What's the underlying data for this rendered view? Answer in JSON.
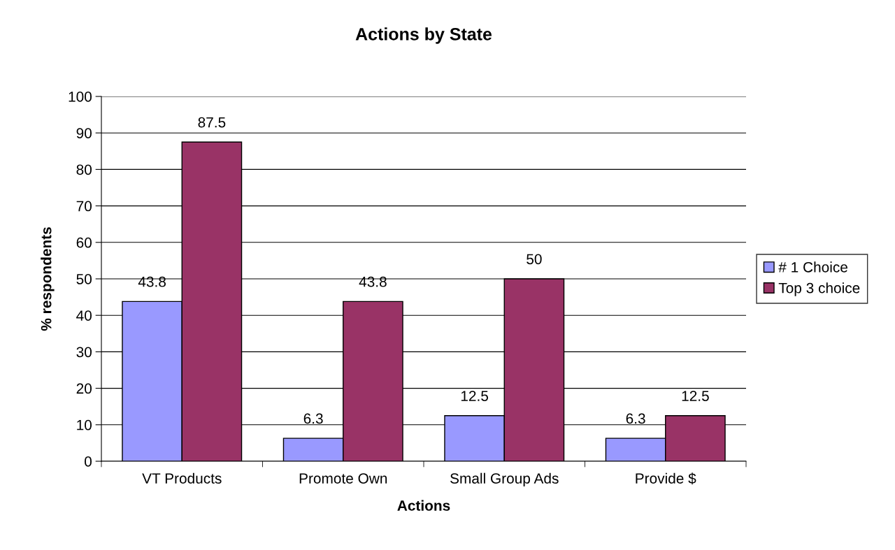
{
  "chart_data": {
    "type": "bar",
    "title": "Actions by State",
    "xlabel": "Actions",
    "ylabel": "% respondents",
    "categories": [
      "VT Products",
      "Promote Own",
      "Small Group Ads",
      "Provide $"
    ],
    "series": [
      {
        "name": "# 1 Choice",
        "color": "#9999ff",
        "values": [
          43.8,
          6.3,
          12.5,
          6.3
        ]
      },
      {
        "name": "Top 3 choice",
        "color": "#993366",
        "values": [
          87.5,
          43.8,
          50,
          12.5
        ]
      }
    ],
    "ylim": [
      0,
      100
    ],
    "yticks": [
      0,
      10,
      20,
      30,
      40,
      50,
      60,
      70,
      80,
      90,
      100
    ],
    "grid": "y",
    "legend": "right",
    "data_labels": true
  }
}
